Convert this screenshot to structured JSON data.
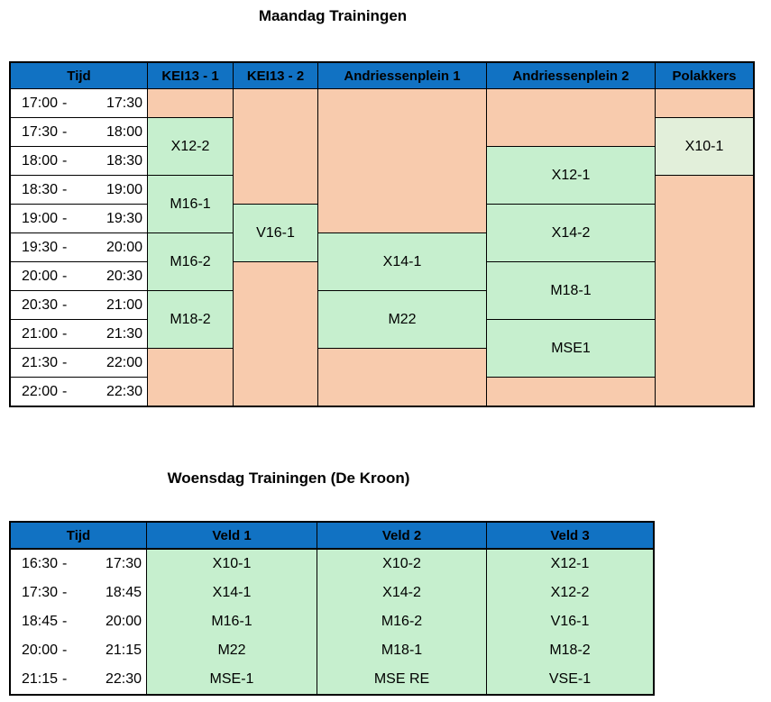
{
  "time_separator": "-",
  "colors": {
    "header_fill": "#1172C3",
    "header_text": "#000000",
    "empty_fill": "#F8CBAD",
    "session_fill": "#C6EFCE",
    "session_fill_alt": "#E2EFDA",
    "time_fill": "#FFFFFF",
    "grid_line": "#000000"
  },
  "maandag": {
    "title": "Maandag Trainingen",
    "columns": [
      "Tijd",
      "KEI13 - 1",
      "KEI13 - 2",
      "Andriessenplein 1",
      "Andriessenplein 2",
      "Polakkers"
    ],
    "times": [
      {
        "start": "17:00",
        "end": "17:30"
      },
      {
        "start": "17:30",
        "end": "18:00"
      },
      {
        "start": "18:00",
        "end": "18:30"
      },
      {
        "start": "18:30",
        "end": "19:00"
      },
      {
        "start": "19:00",
        "end": "19:30"
      },
      {
        "start": "19:30",
        "end": "20:00"
      },
      {
        "start": "20:00",
        "end": "20:30"
      },
      {
        "start": "20:30",
        "end": "21:00"
      },
      {
        "start": "21:00",
        "end": "21:30"
      },
      {
        "start": "21:30",
        "end": "22:00"
      },
      {
        "start": "22:00",
        "end": "22:30"
      }
    ],
    "sessions": {
      "kei13_1": [
        {
          "label": "X12-2",
          "start": "17:30",
          "end": "18:30"
        },
        {
          "label": "M16-1",
          "start": "18:30",
          "end": "19:30"
        },
        {
          "label": "M16-2",
          "start": "19:30",
          "end": "20:30"
        },
        {
          "label": "M18-2",
          "start": "20:30",
          "end": "21:30"
        }
      ],
      "kei13_2": [
        {
          "label": "V16-1",
          "start": "19:00",
          "end": "20:00"
        }
      ],
      "andriessenplein_1": [
        {
          "label": "X14-1",
          "start": "19:30",
          "end": "20:30"
        },
        {
          "label": "M22",
          "start": "20:30",
          "end": "21:30"
        }
      ],
      "andriessenplein_2": [
        {
          "label": "X12-1",
          "start": "18:00",
          "end": "19:00"
        },
        {
          "label": "X14-2",
          "start": "19:00",
          "end": "20:00"
        },
        {
          "label": "M18-1",
          "start": "20:00",
          "end": "21:00"
        },
        {
          "label": "MSE1",
          "start": "21:00",
          "end": "22:00"
        }
      ],
      "polakkers": [
        {
          "label": "X10-1",
          "start": "17:30",
          "end": "18:30"
        }
      ]
    }
  },
  "woensdag": {
    "title": "Woensdag Trainingen (De Kroon)",
    "columns": [
      "Tijd",
      "Veld 1",
      "Veld 2",
      "Veld 3"
    ],
    "rows": [
      {
        "start": "16:30",
        "end": "17:30",
        "veld_1": "X10-1",
        "veld_2": "X10-2",
        "veld_3": "X12-1"
      },
      {
        "start": "17:30",
        "end": "18:45",
        "veld_1": "X14-1",
        "veld_2": "X14-2",
        "veld_3": "X12-2"
      },
      {
        "start": "18:45",
        "end": "20:00",
        "veld_1": "M16-1",
        "veld_2": "M16-2",
        "veld_3": "V16-1"
      },
      {
        "start": "20:00",
        "end": "21:15",
        "veld_1": "M22",
        "veld_2": "M18-1",
        "veld_3": "M18-2"
      },
      {
        "start": "21:15",
        "end": "22:30",
        "veld_1": "MSE-1",
        "veld_2": "MSE RE",
        "veld_3": "VSE-1"
      }
    ]
  }
}
